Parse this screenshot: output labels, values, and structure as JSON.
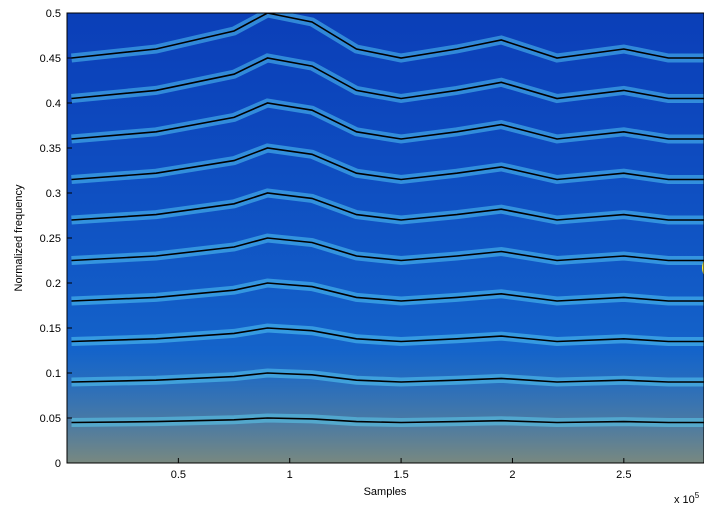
{
  "chart_data": {
    "type": "spectrogram",
    "xlabel": "Samples",
    "ylabel": "Normalized frequency",
    "x_multiplier": "x 10",
    "x_exponent": "5",
    "xlim": [
      0,
      2.86
    ],
    "ylim": [
      0,
      0.5
    ],
    "xticks": [
      0.5,
      1,
      1.5,
      2,
      2.5
    ],
    "yticks": [
      0,
      0.05,
      0.1,
      0.15,
      0.2,
      0.25,
      0.3,
      0.35,
      0.4,
      0.45,
      0.5
    ],
    "background_color": "#0b3fb8",
    "x": [
      0.02,
      0.4,
      0.75,
      0.9,
      1.1,
      1.3,
      1.5,
      1.75,
      1.95,
      2.2,
      2.5,
      2.7,
      2.86
    ],
    "series": [
      {
        "color": "#000000",
        "values": [
          0.045,
          0.046,
          0.048,
          0.05,
          0.049,
          0.046,
          0.045,
          0.046,
          0.047,
          0.045,
          0.046,
          0.045,
          0.045
        ]
      },
      {
        "color": "#000000",
        "values": [
          0.09,
          0.092,
          0.096,
          0.1,
          0.098,
          0.092,
          0.09,
          0.092,
          0.094,
          0.09,
          0.092,
          0.09,
          0.09
        ]
      },
      {
        "color": "#000000",
        "values": [
          0.135,
          0.138,
          0.144,
          0.15,
          0.147,
          0.138,
          0.135,
          0.138,
          0.141,
          0.135,
          0.138,
          0.135,
          0.135
        ]
      },
      {
        "color": "#000000",
        "values": [
          0.18,
          0.184,
          0.192,
          0.2,
          0.196,
          0.184,
          0.18,
          0.184,
          0.188,
          0.18,
          0.184,
          0.18,
          0.18
        ]
      },
      {
        "color": "#000000",
        "values": [
          0.225,
          0.23,
          0.24,
          0.25,
          0.245,
          0.23,
          0.225,
          0.23,
          0.235,
          0.225,
          0.23,
          0.225,
          0.225
        ]
      },
      {
        "color": "#000000",
        "values": [
          0.27,
          0.276,
          0.288,
          0.3,
          0.294,
          0.276,
          0.27,
          0.276,
          0.282,
          0.27,
          0.276,
          0.27,
          0.27
        ]
      },
      {
        "color": "#000000",
        "values": [
          0.315,
          0.322,
          0.336,
          0.35,
          0.343,
          0.322,
          0.315,
          0.322,
          0.329,
          0.315,
          0.322,
          0.315,
          0.315
        ]
      },
      {
        "color": "#000000",
        "values": [
          0.36,
          0.368,
          0.384,
          0.4,
          0.392,
          0.368,
          0.36,
          0.368,
          0.376,
          0.36,
          0.368,
          0.36,
          0.36
        ]
      },
      {
        "color": "#000000",
        "values": [
          0.405,
          0.414,
          0.432,
          0.45,
          0.441,
          0.414,
          0.405,
          0.414,
          0.423,
          0.405,
          0.414,
          0.405,
          0.405
        ]
      },
      {
        "color": "#000000",
        "values": [
          0.45,
          0.46,
          0.48,
          0.5,
          0.49,
          0.46,
          0.45,
          0.46,
          0.47,
          0.45,
          0.46,
          0.45,
          0.45
        ]
      }
    ]
  }
}
